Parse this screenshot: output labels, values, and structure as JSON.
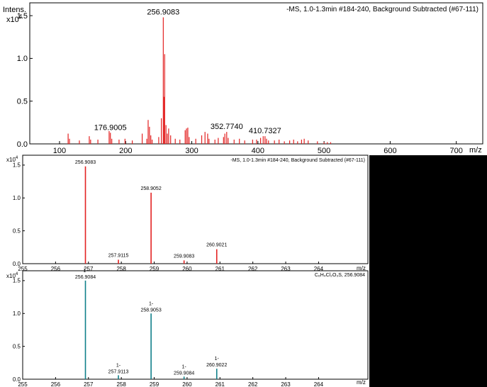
{
  "colors": {
    "measured": "#e32222",
    "simulated": "#10808a",
    "panel_bg": "#000000"
  },
  "chart_data": [
    {
      "type": "bar",
      "panel": "full-spectrum",
      "title": "-MS, 1.0-1.3min #184-240, Background Subtracted (#67-111)",
      "ylabel": "Intens.",
      "yexp": "x10",
      "yexp_power": "4",
      "xlabel": "m/z",
      "xlim": [
        55,
        740
      ],
      "ylim": [
        0,
        1.65
      ],
      "xticks": [
        "100",
        "200",
        "300",
        "400",
        "500",
        "600",
        "700"
      ],
      "xtick_values": [
        100,
        200,
        300,
        400,
        500,
        600,
        700
      ],
      "yticks": [
        "0.0",
        "0.5",
        "1.0",
        "1.5"
      ],
      "ytick_values": [
        0,
        0.5,
        1.0,
        1.5
      ],
      "peaks": [
        {
          "mz": 113,
          "i": 0.12
        },
        {
          "mz": 115,
          "i": 0.06
        },
        {
          "mz": 130,
          "i": 0.04
        },
        {
          "mz": 145,
          "i": 0.09
        },
        {
          "mz": 147,
          "i": 0.05
        },
        {
          "mz": 158,
          "i": 0.05
        },
        {
          "mz": 175,
          "i": 0.15
        },
        {
          "mz": 176.9005,
          "i": 0.13
        },
        {
          "mz": 179,
          "i": 0.06
        },
        {
          "mz": 190,
          "i": 0.05
        },
        {
          "mz": 199,
          "i": 0.06
        },
        {
          "mz": 210,
          "i": 0.04
        },
        {
          "mz": 225,
          "i": 0.12
        },
        {
          "mz": 232,
          "i": 0.06
        },
        {
          "mz": 234,
          "i": 0.28
        },
        {
          "mz": 236,
          "i": 0.2
        },
        {
          "mz": 238,
          "i": 0.1
        },
        {
          "mz": 240,
          "i": 0.05
        },
        {
          "mz": 250,
          "i": 0.08
        },
        {
          "mz": 254,
          "i": 0.3
        },
        {
          "mz": 256.9083,
          "i": 1.48
        },
        {
          "mz": 258,
          "i": 0.55
        },
        {
          "mz": 259,
          "i": 1.05
        },
        {
          "mz": 261,
          "i": 0.22
        },
        {
          "mz": 263,
          "i": 0.12
        },
        {
          "mz": 265,
          "i": 0.18
        },
        {
          "mz": 268,
          "i": 0.1
        },
        {
          "mz": 275,
          "i": 0.06
        },
        {
          "mz": 282,
          "i": 0.05
        },
        {
          "mz": 290,
          "i": 0.16
        },
        {
          "mz": 292,
          "i": 0.18
        },
        {
          "mz": 294,
          "i": 0.19
        },
        {
          "mz": 296,
          "i": 0.08
        },
        {
          "mz": 306,
          "i": 0.06
        },
        {
          "mz": 315,
          "i": 0.1
        },
        {
          "mz": 320,
          "i": 0.14
        },
        {
          "mz": 324,
          "i": 0.12
        },
        {
          "mz": 326,
          "i": 0.06
        },
        {
          "mz": 335,
          "i": 0.05
        },
        {
          "mz": 340,
          "i": 0.07
        },
        {
          "mz": 348,
          "i": 0.08
        },
        {
          "mz": 350,
          "i": 0.12
        },
        {
          "mz": 352.774,
          "i": 0.14
        },
        {
          "mz": 355,
          "i": 0.07
        },
        {
          "mz": 364,
          "i": 0.05
        },
        {
          "mz": 372,
          "i": 0.06
        },
        {
          "mz": 380,
          "i": 0.04
        },
        {
          "mz": 392,
          "i": 0.05
        },
        {
          "mz": 398,
          "i": 0.05
        },
        {
          "mz": 404,
          "i": 0.07
        },
        {
          "mz": 408,
          "i": 0.09
        },
        {
          "mz": 410.7327,
          "i": 0.09
        },
        {
          "mz": 413,
          "i": 0.06
        },
        {
          "mz": 416,
          "i": 0.04
        },
        {
          "mz": 425,
          "i": 0.04
        },
        {
          "mz": 432,
          "i": 0.05
        },
        {
          "mz": 440,
          "i": 0.03
        },
        {
          "mz": 448,
          "i": 0.04
        },
        {
          "mz": 454,
          "i": 0.05
        },
        {
          "mz": 460,
          "i": 0.03
        },
        {
          "mz": 466,
          "i": 0.05
        },
        {
          "mz": 470,
          "i": 0.06
        },
        {
          "mz": 476,
          "i": 0.04
        },
        {
          "mz": 490,
          "i": 0.03
        },
        {
          "mz": 500,
          "i": 0.02
        },
        {
          "mz": 505,
          "i": 0.02
        },
        {
          "mz": 510,
          "i": 0.02
        }
      ],
      "labels": [
        {
          "mz": 176.9005,
          "i": 0.13,
          "text": "176.9005"
        },
        {
          "mz": 256.9083,
          "i": 1.48,
          "text": "256.9083"
        },
        {
          "mz": 352.774,
          "i": 0.14,
          "text": "352.7740"
        },
        {
          "mz": 410.7327,
          "i": 0.09,
          "text": "410.7327"
        }
      ]
    },
    {
      "type": "bar",
      "panel": "measured-isotope-zoom",
      "title": "-MS, 1.0-1.3min #184-240, Background Subtracted (#67-111)",
      "ylabel": "",
      "yexp": "x10",
      "yexp_power": "4",
      "xlabel": "m/z",
      "xlim": [
        255,
        265.5
      ],
      "ylim": [
        0,
        1.65
      ],
      "xticks": [
        "255",
        "256",
        "257",
        "258",
        "259",
        "260",
        "261",
        "262",
        "263",
        "264"
      ],
      "xtick_values": [
        255,
        256,
        257,
        258,
        259,
        260,
        261,
        262,
        263,
        264
      ],
      "yticks": [
        "0.0",
        "0.5",
        "1.0",
        "1.5"
      ],
      "ytick_values": [
        0,
        0.5,
        1.0,
        1.5
      ],
      "peaks": [
        {
          "mz": 256.9083,
          "i": 1.48
        },
        {
          "mz": 257.9115,
          "i": 0.06
        },
        {
          "mz": 258.9052,
          "i": 1.08
        },
        {
          "mz": 259.9083,
          "i": 0.05
        },
        {
          "mz": 260.9021,
          "i": 0.22
        }
      ],
      "labels": [
        {
          "mz": 256.9083,
          "i": 1.48,
          "text": "256.9083"
        },
        {
          "mz": 257.9115,
          "i": 0.06,
          "text": "257.9115"
        },
        {
          "mz": 258.9052,
          "i": 1.08,
          "text": "258.9052"
        },
        {
          "mz": 259.9083,
          "i": 0.05,
          "text": "259.9083"
        },
        {
          "mz": 260.9021,
          "i": 0.22,
          "text": "260.9021"
        }
      ]
    },
    {
      "type": "bar",
      "panel": "simulated-isotope-pattern",
      "title": "C₆H₄Cl₂O₃S, 256.9084",
      "ylabel": "",
      "yexp": "x10",
      "yexp_power": "4",
      "xlabel": "m/z",
      "xlim": [
        255,
        265.5
      ],
      "ylim": [
        0,
        1.65
      ],
      "xticks": [
        "255",
        "256",
        "257",
        "258",
        "259",
        "260",
        "261",
        "262",
        "263",
        "264"
      ],
      "xtick_values": [
        255,
        256,
        257,
        258,
        259,
        260,
        261,
        262,
        263,
        264
      ],
      "yticks": [
        "0.0",
        "0.5",
        "1.0",
        "1.5"
      ],
      "ytick_values": [
        0,
        0.5,
        1.0,
        1.5
      ],
      "peaks": [
        {
          "mz": 256.9084,
          "i": 1.5
        },
        {
          "mz": 257.9113,
          "i": 0.06
        },
        {
          "mz": 258.9053,
          "i": 1.0
        },
        {
          "mz": 259.9084,
          "i": 0.04
        },
        {
          "mz": 260.9022,
          "i": 0.16
        }
      ],
      "labels": [
        {
          "mz": 256.9084,
          "i": 1.5,
          "prefix": "1-",
          "text": "256.9084"
        },
        {
          "mz": 257.9113,
          "i": 0.06,
          "prefix": "1-",
          "text": "257.9113"
        },
        {
          "mz": 258.9053,
          "i": 1.0,
          "prefix": "1-",
          "text": "258.9053"
        },
        {
          "mz": 259.9084,
          "i": 0.04,
          "prefix": "1-",
          "text": "259.9084"
        },
        {
          "mz": 260.9022,
          "i": 0.16,
          "prefix": "1-",
          "text": "260.9022"
        }
      ]
    }
  ]
}
